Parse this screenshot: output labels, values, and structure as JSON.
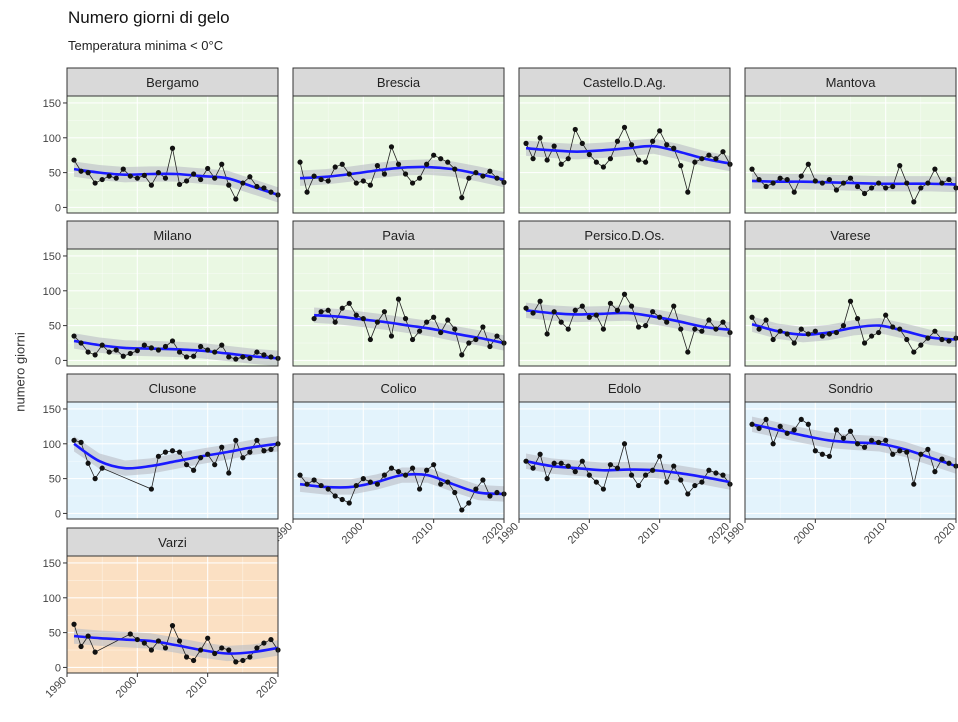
{
  "title": "Numero giorni di gelo",
  "subtitle": "Temperatura minima < 0°C",
  "colors": {
    "line": "#1a1aff",
    "band": "#b9bdc4",
    "points": "#111111",
    "strip": "#d9d9d9",
    "green": "#eaf8e3",
    "blue": "#e3f3fc",
    "orange": "#fbe0c3"
  },
  "chart_data": {
    "type": "line",
    "title": "Numero giorni di gelo",
    "subtitle": "Temperatura minima < 0°C",
    "ylabel": "numero giorni",
    "xlabel": "",
    "xlim": [
      1990,
      2020
    ],
    "ylim": [
      -8,
      160
    ],
    "xticks": [
      1990,
      2000,
      2010,
      2020
    ],
    "yticks": [
      0,
      50,
      100,
      150
    ],
    "grid": true,
    "facets": [
      {
        "name": "Bergamo",
        "bg": "green",
        "x": [
          1991,
          1992,
          1993,
          1994,
          1995,
          1996,
          1997,
          1998,
          1999,
          2000,
          2001,
          2002,
          2003,
          2004,
          2005,
          2006,
          2007,
          2008,
          2009,
          2010,
          2011,
          2012,
          2013,
          2014,
          2015,
          2016,
          2017,
          2018,
          2019,
          2020
        ],
        "y": [
          68,
          52,
          50,
          35,
          40,
          45,
          42,
          55,
          45,
          42,
          46,
          32,
          50,
          42,
          85,
          33,
          38,
          48,
          40,
          56,
          42,
          62,
          32,
          12,
          35,
          44,
          30,
          28,
          22,
          18
        ],
        "trend": [
          55,
          50,
          47,
          48,
          48,
          45,
          42,
          30,
          18
        ]
      },
      {
        "name": "Brescia",
        "bg": "green",
        "x": [
          1991,
          1992,
          1993,
          1994,
          1995,
          1996,
          1997,
          1998,
          1999,
          2000,
          2001,
          2002,
          2003,
          2004,
          2005,
          2006,
          2007,
          2008,
          2009,
          2010,
          2011,
          2012,
          2013,
          2014,
          2015,
          2016,
          2017,
          2018,
          2019,
          2020
        ],
        "y": [
          65,
          22,
          45,
          40,
          38,
          58,
          62,
          48,
          35,
          38,
          32,
          60,
          48,
          87,
          62,
          48,
          35,
          42,
          62,
          75,
          70,
          65,
          55,
          14,
          42,
          50,
          45,
          52,
          42,
          36
        ],
        "trend": [
          42,
          44,
          48,
          53,
          57,
          58,
          55,
          48,
          40
        ]
      },
      {
        "name": "Castello.D.Ag.",
        "bg": "green",
        "x": [
          1991,
          1992,
          1993,
          1994,
          1995,
          1996,
          1997,
          1998,
          1999,
          2000,
          2001,
          2002,
          2003,
          2004,
          2005,
          2006,
          2007,
          2008,
          2009,
          2010,
          2011,
          2012,
          2013,
          2014,
          2015,
          2016,
          2017,
          2018,
          2019,
          2020
        ],
        "y": [
          92,
          70,
          100,
          68,
          88,
          62,
          70,
          112,
          92,
          76,
          65,
          58,
          70,
          95,
          115,
          90,
          68,
          65,
          95,
          110,
          90,
          85,
          60,
          22,
          65,
          70,
          75,
          70,
          80,
          62
        ],
        "trend": [
          85,
          82,
          80,
          82,
          85,
          88,
          80,
          70,
          63
        ]
      },
      {
        "name": "Mantova",
        "bg": "green",
        "x": [
          1991,
          1992,
          1993,
          1994,
          1995,
          1996,
          1997,
          1998,
          1999,
          2000,
          2001,
          2002,
          2003,
          2004,
          2005,
          2006,
          2007,
          2008,
          2009,
          2010,
          2011,
          2012,
          2013,
          2014,
          2015,
          2016,
          2017,
          2018,
          2019,
          2020
        ],
        "y": [
          55,
          40,
          30,
          35,
          42,
          40,
          22,
          45,
          62,
          38,
          35,
          40,
          25,
          35,
          42,
          30,
          20,
          28,
          35,
          28,
          30,
          60,
          35,
          8,
          28,
          35,
          55,
          35,
          40,
          28
        ],
        "trend": [
          38,
          37,
          37,
          36,
          35,
          34,
          34,
          34,
          33
        ]
      },
      {
        "name": "Milano",
        "bg": "green",
        "x": [
          1991,
          1992,
          1993,
          1994,
          1995,
          1996,
          1997,
          1998,
          1999,
          2000,
          2001,
          2002,
          2003,
          2004,
          2005,
          2006,
          2007,
          2008,
          2009,
          2010,
          2011,
          2012,
          2013,
          2014,
          2015,
          2016,
          2017,
          2018,
          2019,
          2020
        ],
        "y": [
          35,
          25,
          12,
          8,
          22,
          12,
          15,
          6,
          10,
          14,
          22,
          18,
          15,
          20,
          28,
          12,
          5,
          6,
          20,
          15,
          12,
          22,
          5,
          2,
          5,
          3,
          12,
          8,
          5,
          3
        ],
        "trend": [
          28,
          22,
          18,
          17,
          16,
          14,
          10,
          6,
          3
        ]
      },
      {
        "name": "Pavia",
        "bg": "green",
        "x": [
          1993,
          1994,
          1995,
          1996,
          1997,
          1998,
          1999,
          2000,
          2001,
          2002,
          2003,
          2004,
          2005,
          2006,
          2007,
          2008,
          2009,
          2010,
          2011,
          2012,
          2013,
          2014,
          2015,
          2016,
          2017,
          2018,
          2019,
          2020
        ],
        "y": [
          60,
          70,
          72,
          55,
          75,
          82,
          65,
          60,
          30,
          55,
          70,
          35,
          88,
          60,
          30,
          42,
          55,
          62,
          40,
          58,
          45,
          8,
          25,
          30,
          48,
          20,
          35,
          25
        ],
        "trend": [
          65,
          63,
          59,
          55,
          50,
          45,
          38,
          32,
          25
        ]
      },
      {
        "name": "Persico.D.Os.",
        "bg": "green",
        "x": [
          1991,
          1992,
          1993,
          1994,
          1995,
          1996,
          1997,
          1998,
          1999,
          2000,
          2001,
          2002,
          2003,
          2004,
          2005,
          2006,
          2007,
          2008,
          2009,
          2010,
          2011,
          2012,
          2013,
          2014,
          2015,
          2016,
          2017,
          2018,
          2019,
          2020
        ],
        "y": [
          75,
          68,
          85,
          38,
          70,
          55,
          45,
          72,
          78,
          62,
          65,
          45,
          82,
          72,
          95,
          78,
          48,
          50,
          70,
          62,
          55,
          78,
          45,
          12,
          45,
          42,
          58,
          45,
          55,
          40
        ],
        "trend": [
          72,
          68,
          66,
          67,
          68,
          63,
          56,
          48,
          44
        ]
      },
      {
        "name": "Varese",
        "bg": "green",
        "x": [
          1991,
          1992,
          1993,
          1994,
          1995,
          1996,
          1997,
          1998,
          1999,
          2000,
          2001,
          2002,
          2003,
          2004,
          2005,
          2006,
          2007,
          2008,
          2009,
          2010,
          2011,
          2012,
          2013,
          2014,
          2015,
          2016,
          2017,
          2018,
          2019,
          2020
        ],
        "y": [
          62,
          45,
          58,
          30,
          42,
          38,
          25,
          45,
          38,
          42,
          35,
          38,
          40,
          50,
          85,
          60,
          25,
          35,
          40,
          65,
          48,
          45,
          30,
          12,
          22,
          32,
          42,
          30,
          28,
          32
        ],
        "trend": [
          52,
          42,
          37,
          40,
          47,
          50,
          42,
          33,
          30
        ]
      },
      {
        "name": "Clusone",
        "bg": "blue",
        "x": [
          1991,
          1992,
          1993,
          1994,
          1995,
          2002,
          2003,
          2004,
          2005,
          2006,
          2007,
          2008,
          2009,
          2010,
          2011,
          2012,
          2013,
          2014,
          2015,
          2016,
          2017,
          2018,
          2019,
          2020
        ],
        "y": [
          105,
          102,
          72,
          50,
          65,
          35,
          82,
          88,
          90,
          88,
          70,
          62,
          80,
          85,
          70,
          95,
          58,
          105,
          80,
          88,
          105,
          90,
          92,
          100
        ],
        "trend": [
          100,
          75,
          65,
          68,
          75,
          82,
          88,
          95,
          100
        ]
      },
      {
        "name": "Colico",
        "bg": "blue",
        "x": [
          1991,
          1992,
          1993,
          1994,
          1995,
          1996,
          1997,
          1998,
          1999,
          2000,
          2001,
          2002,
          2003,
          2004,
          2005,
          2006,
          2007,
          2008,
          2009,
          2010,
          2011,
          2012,
          2013,
          2014,
          2015,
          2016,
          2017,
          2018,
          2019,
          2020
        ],
        "y": [
          55,
          42,
          48,
          40,
          35,
          25,
          20,
          15,
          40,
          50,
          45,
          42,
          55,
          65,
          60,
          55,
          65,
          35,
          62,
          70,
          42,
          45,
          30,
          5,
          15,
          35,
          48,
          25,
          30,
          28
        ],
        "trend": [
          42,
          38,
          38,
          45,
          55,
          55,
          42,
          30,
          28
        ]
      },
      {
        "name": "Edolo",
        "bg": "blue",
        "x": [
          1991,
          1992,
          1993,
          1994,
          1995,
          1996,
          1997,
          1998,
          1999,
          2000,
          2001,
          2002,
          2003,
          2004,
          2005,
          2006,
          2007,
          2008,
          2009,
          2010,
          2011,
          2012,
          2013,
          2014,
          2015,
          2016,
          2017,
          2018,
          2019,
          2020
        ],
        "y": [
          75,
          65,
          85,
          50,
          72,
          72,
          68,
          60,
          75,
          55,
          45,
          35,
          70,
          65,
          100,
          55,
          40,
          55,
          62,
          82,
          45,
          68,
          48,
          28,
          40,
          45,
          62,
          58,
          55,
          42
        ],
        "trend": [
          75,
          68,
          65,
          62,
          63,
          62,
          58,
          52,
          45
        ]
      },
      {
        "name": "Sondrio",
        "bg": "blue",
        "x": [
          1991,
          1992,
          1993,
          1994,
          1995,
          1996,
          1997,
          1998,
          1999,
          2000,
          2001,
          2002,
          2003,
          2004,
          2005,
          2006,
          2007,
          2008,
          2009,
          2010,
          2011,
          2012,
          2013,
          2014,
          2015,
          2016,
          2017,
          2018,
          2019,
          2020
        ],
        "y": [
          128,
          122,
          135,
          100,
          125,
          115,
          120,
          135,
          128,
          90,
          85,
          82,
          120,
          108,
          118,
          100,
          95,
          105,
          102,
          105,
          85,
          90,
          88,
          42,
          85,
          92,
          60,
          78,
          72,
          68
        ],
        "trend": [
          128,
          120,
          112,
          105,
          102,
          100,
          92,
          80,
          68
        ]
      },
      {
        "name": "Varzi",
        "bg": "orange",
        "x": [
          1991,
          1992,
          1993,
          1994,
          1999,
          2000,
          2001,
          2002,
          2003,
          2004,
          2005,
          2006,
          2007,
          2008,
          2009,
          2010,
          2011,
          2012,
          2013,
          2014,
          2015,
          2016,
          2017,
          2018,
          2019,
          2020
        ],
        "y": [
          62,
          30,
          45,
          22,
          48,
          40,
          35,
          25,
          38,
          28,
          60,
          38,
          15,
          10,
          25,
          42,
          20,
          28,
          25,
          8,
          10,
          15,
          28,
          35,
          40,
          25
        ],
        "trend": [
          45,
          42,
          40,
          38,
          32,
          25,
          20,
          22,
          28
        ]
      }
    ]
  }
}
